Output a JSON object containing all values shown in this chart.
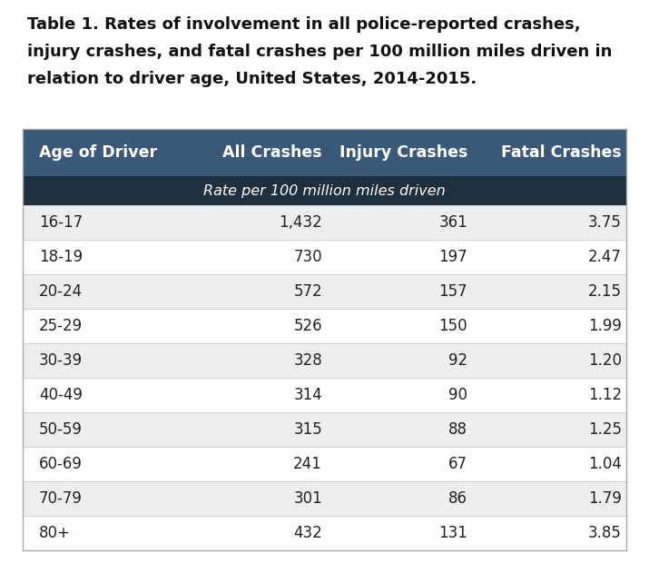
{
  "title_lines": [
    "Table 1. Rates of involvement in all police-reported crashes,",
    "injury crashes, and fatal crashes per 100 million miles driven in",
    "relation to driver age, United States, 2014-2015."
  ],
  "header_row": [
    "Age of Driver",
    "All Crashes",
    "Injury Crashes",
    "Fatal Crashes"
  ],
  "subheader": "Rate per 100 million miles driven",
  "header_bg": "#3a5878",
  "subheader_bg": "#1e2f3e",
  "row_bg_odd": "#eeeeee",
  "row_bg_even": "#ffffff",
  "header_text_color": "#ffffff",
  "data_text_color": "#222222",
  "rows": [
    [
      "16-17",
      "1,432",
      "361",
      "3.75"
    ],
    [
      "18-19",
      "730",
      "197",
      "2.47"
    ],
    [
      "20-24",
      "572",
      "157",
      "2.15"
    ],
    [
      "25-29",
      "526",
      "150",
      "1.99"
    ],
    [
      "30-39",
      "328",
      "92",
      "1.20"
    ],
    [
      "40-49",
      "314",
      "90",
      "1.12"
    ],
    [
      "50-59",
      "315",
      "88",
      "1.25"
    ],
    [
      "60-69",
      "241",
      "67",
      "1.04"
    ],
    [
      "70-79",
      "301",
      "86",
      "1.79"
    ],
    [
      "80+",
      "432",
      "131",
      "3.85"
    ]
  ],
  "title_fontsize": 13.0,
  "header_fontsize": 12.5,
  "subheader_fontsize": 11.5,
  "data_fontsize": 12.0,
  "background_color": "#ffffff",
  "fig_width": 7.15,
  "fig_height": 6.31,
  "dpi": 100
}
